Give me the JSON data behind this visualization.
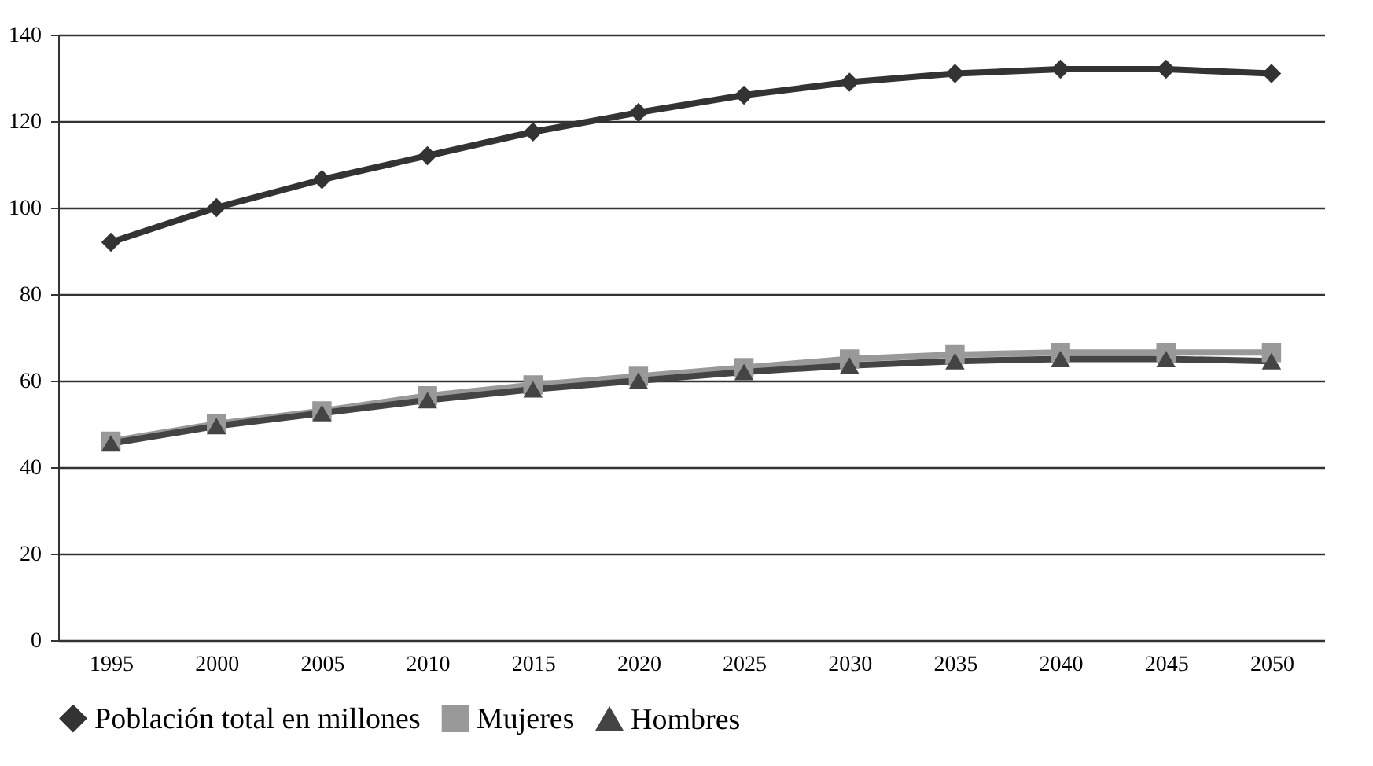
{
  "chart_data": {
    "type": "line",
    "categories": [
      "1995",
      "2000",
      "2005",
      "2010",
      "2015",
      "2020",
      "2025",
      "2030",
      "2035",
      "2040",
      "2045",
      "2050"
    ],
    "series": [
      {
        "name": "Población total en millones",
        "color": "#333333",
        "marker": "diamond",
        "values": [
          92,
          100,
          106.5,
          112,
          117.5,
          122,
          126,
          129,
          131,
          132,
          132,
          131
        ]
      },
      {
        "name": "Mujeres",
        "color": "#999999",
        "marker": "square",
        "values": [
          46,
          50,
          53,
          56.5,
          59,
          61,
          63,
          65,
          66,
          66.5,
          66.5,
          66.5
        ]
      },
      {
        "name": "Hombres",
        "color": "#444444",
        "marker": "triangle",
        "values": [
          45.5,
          49.5,
          52.5,
          55.5,
          58,
          60,
          62,
          63.5,
          64.5,
          65,
          65,
          64.5
        ]
      }
    ],
    "ylim": [
      0,
      140
    ],
    "yticks": [
      0,
      20,
      40,
      60,
      80,
      100,
      120,
      140
    ],
    "grid": "y",
    "legend": "bottom",
    "line_style": "solid"
  }
}
